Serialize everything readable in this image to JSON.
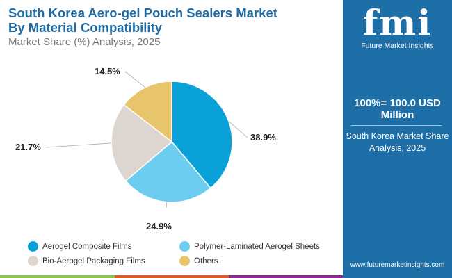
{
  "chart_data": {
    "type": "pie",
    "title": "South Korea Aero-gel Pouch Sealers Market By Material Compatibility",
    "subtitle": "Market Share (%) Analysis, 2025",
    "categories": [
      "Aerogel Composite Films",
      "Polymer-Laminated Aerogel Sheets",
      "Bio-Aerogel Packaging Films",
      "Others"
    ],
    "values": [
      38.9,
      24.9,
      21.7,
      14.5
    ],
    "labels": [
      "38.9%",
      "24.9%",
      "21.7%",
      "14.5%"
    ],
    "colors": [
      "#0aa0d8",
      "#6dcdf0",
      "#dcd5d0",
      "#e8c46a"
    ],
    "legend_placement": "bottom"
  },
  "title_line1": "South Korea Aero-gel Pouch Sealers Market",
  "title_line2": "By Material Compatibility",
  "panel": {
    "logo": "fmi",
    "brand": "Future Market Insights",
    "total": "100%= 100.0 USD Million",
    "desc": "South Korea Market Share Analysis, 2025",
    "url": "www.futuremarketinsights.com"
  }
}
